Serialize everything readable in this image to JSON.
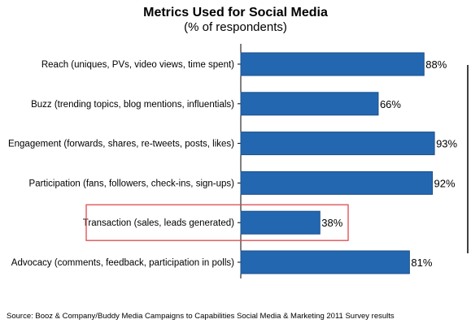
{
  "chart_data": {
    "type": "bar",
    "orientation": "horizontal",
    "title": "Metrics Used for Social Media",
    "subtitle": "(% of respondents)",
    "categories": [
      "Reach (uniques, PVs, video views, time spent)",
      "Buzz (trending topics, blog mentions, influentials)",
      "Engagement (forwards, shares, re-tweets, posts, likes)",
      "Participation (fans, followers, check-ins, sign-ups)",
      "Transaction (sales, leads generated)",
      "Advocacy (comments, feedback, participation in polls)"
    ],
    "values": [
      88,
      66,
      93,
      92,
      38,
      81
    ],
    "data_labels": [
      "88%",
      "66%",
      "93%",
      "92%",
      "38%",
      "81%"
    ],
    "xlim": [
      0,
      100
    ],
    "grid": false,
    "highlighted_category": "Transaction (sales, leads generated)",
    "bar_color": "#2367B0",
    "bar_edge_color": "#1B4F8C",
    "highlight_box_color": "#E0484B"
  },
  "source": "Source: Booz & Company/Buddy Media Campaigns to Capabilities Social Media & Marketing 2011 Survey results"
}
